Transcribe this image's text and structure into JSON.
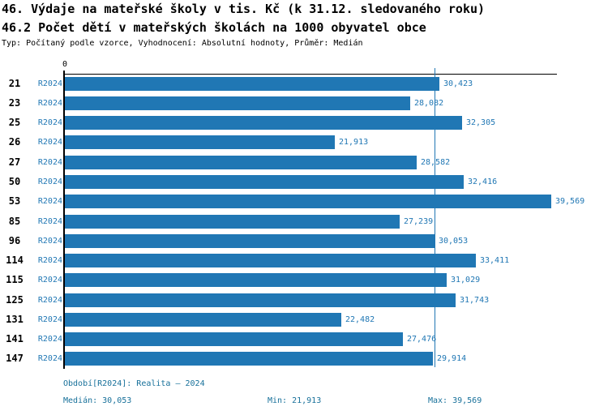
{
  "chart_data": {
    "type": "bar",
    "orientation": "horizontal",
    "title": "46. Výdaje na mateřské školy v tis. Kč (k 31.12. sledovaného roku)",
    "subtitle": "46.2 Počet dětí v mateřských školách na 1000 obyvatel obce",
    "meta": "Typ: Počítaný podle vzorce, Vyhodnocení: Absolutní hodnoty, Průměr: Medián",
    "categories": [
      "21",
      "23",
      "25",
      "26",
      "27",
      "50",
      "53",
      "85",
      "96",
      "114",
      "115",
      "125",
      "131",
      "141",
      "147"
    ],
    "series_label": "R2024",
    "values": [
      30423,
      28082,
      32305,
      21913,
      28582,
      32416,
      39569,
      27239,
      30053,
      33411,
      31029,
      31743,
      22482,
      27476,
      29914
    ],
    "value_labels": [
      "30,423",
      "28,082",
      "32,305",
      "21,913",
      "28,582",
      "32,416",
      "39,569",
      "27,239",
      "30,053",
      "33,411",
      "31,029",
      "31,743",
      "22,482",
      "27,476",
      "29,914"
    ],
    "xlim": [
      0,
      40000
    ],
    "x_axis": {
      "zero_label": "0"
    },
    "median": 30053,
    "min": 21913,
    "max": 39569,
    "grid": false,
    "legend": "none",
    "colors": {
      "bar": "#2077b4",
      "text_blue": "#2077b4",
      "footer_teal": "#17709a",
      "axis": "#000000",
      "median_line": "#2077b4"
    }
  },
  "footer": {
    "period": "Období[R2024]: Realita – 2024",
    "median": "Medián: 30,053",
    "min": "Min: 21,913",
    "max": "Max: 39,569"
  }
}
